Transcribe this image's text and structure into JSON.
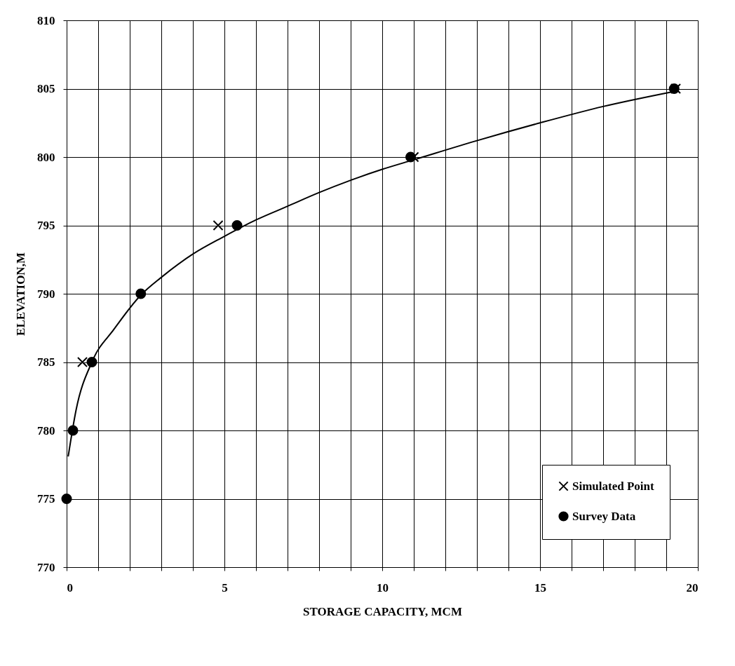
{
  "chart_data": {
    "type": "scatter",
    "xlabel": "STORAGE CAPACITY, MCM",
    "ylabel": "ELEVATION,M",
    "xlim": [
      0,
      20
    ],
    "ylim": [
      770,
      810
    ],
    "xticks": [
      0,
      {
        "value": 1,
        "label": null
      },
      {
        "value": 2,
        "label": null
      },
      {
        "value": 3,
        "label": null
      },
      {
        "value": 4,
        "label": null
      },
      5,
      {
        "value": 6,
        "label": null
      },
      {
        "value": 7,
        "label": null
      },
      {
        "value": 8,
        "label": null
      },
      {
        "value": 9,
        "label": null
      },
      10,
      {
        "value": 11,
        "label": null
      },
      {
        "value": 12,
        "label": null
      },
      {
        "value": 13,
        "label": null
      },
      {
        "value": 14,
        "label": null
      },
      15,
      {
        "value": 16,
        "label": null
      },
      {
        "value": 17,
        "label": null
      },
      {
        "value": 18,
        "label": null
      },
      {
        "value": 19,
        "label": null
      },
      20
    ],
    "yticks": [
      770,
      775,
      780,
      785,
      790,
      795,
      800,
      805,
      810
    ],
    "grid": true,
    "legend": "bottom right",
    "series": [
      {
        "type": "line",
        "color": "#000000",
        "marker": "none",
        "line_style": "solid",
        "x": [
          0.05,
          0.3,
          0.8,
          1.5,
          2.35,
          3,
          4,
          5,
          6,
          7,
          8,
          9,
          10,
          11,
          13,
          15,
          17,
          19.25
        ],
        "values": [
          778.1,
          781.5,
          785,
          787.4,
          789.9,
          791.2,
          792.9,
          794.2,
          795.4,
          796.4,
          797.4,
          798.3,
          799.1,
          799.8,
          801.2,
          802.5,
          803.7,
          804.8
        ]
      },
      {
        "name": "Simulated Point",
        "color": "#000000",
        "marker": "cross",
        "x": [
          0.5,
          4.8,
          11.0,
          19.3
        ],
        "values": [
          785,
          795,
          800,
          805
        ]
      },
      {
        "name": "Survey Data",
        "color": "#000000",
        "marker": "circle",
        "x": [
          0,
          0.2,
          0.8,
          2.35,
          5.4,
          10.9,
          19.25
        ],
        "values": [
          775,
          780,
          785,
          790,
          795,
          800,
          805
        ]
      }
    ]
  }
}
